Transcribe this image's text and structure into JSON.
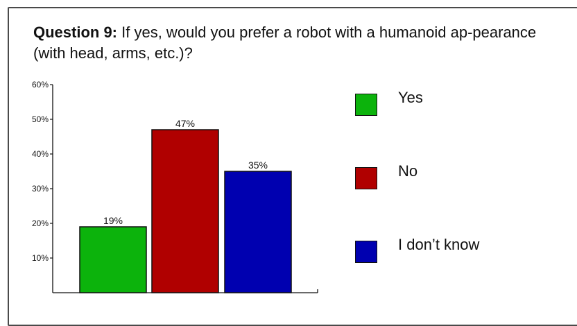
{
  "question": {
    "label": "Question 9:",
    "text": " If yes, would you prefer a robot with a humanoid ap-pearance (with head, arms, etc.)?"
  },
  "chart_data": {
    "type": "bar",
    "title": "",
    "xlabel": "",
    "ylabel": "",
    "categories": [
      "Yes",
      "No",
      "I don’t know"
    ],
    "values": [
      19,
      47,
      35
    ],
    "value_labels": [
      "19%",
      "47%",
      "35%"
    ],
    "colors": [
      "#0cb30c",
      "#b00000",
      "#0000b0"
    ],
    "ylim": [
      0,
      60
    ],
    "yticks": [
      10,
      20,
      30,
      40,
      50,
      60
    ],
    "ytick_labels": [
      "10%",
      "20%",
      "30%",
      "40%",
      "50%",
      "60%"
    ],
    "grid": false,
    "legend_position": "right"
  },
  "legend": [
    {
      "label": "Yes",
      "color": "#0cb30c"
    },
    {
      "label": "No",
      "color": "#b00000"
    },
    {
      "label": "I don’t know",
      "color": "#0000b0"
    }
  ]
}
